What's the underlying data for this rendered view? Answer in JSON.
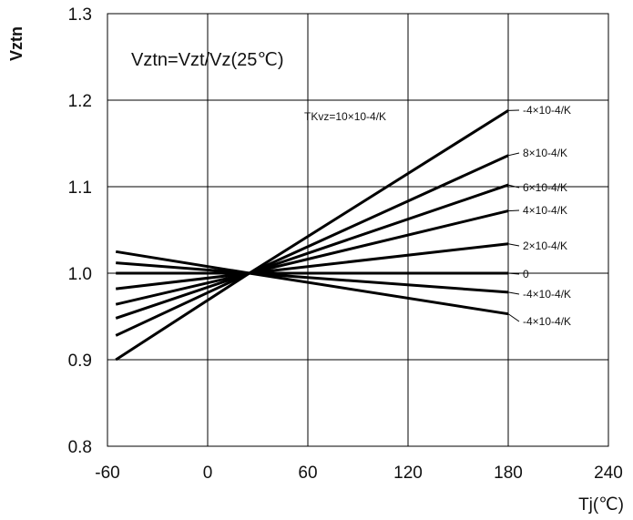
{
  "chart_data": {
    "type": "line",
    "title": "",
    "xlabel": "Tj(℃)",
    "ylabel": "Vztn",
    "xlim": [
      -60,
      240
    ],
    "ylim": [
      0.8,
      1.3
    ],
    "xticks": [
      "-60",
      "0",
      "60",
      "120",
      "180",
      "240"
    ],
    "yticks": [
      "0.8",
      "0.9",
      "1.0",
      "1.1",
      "1.2",
      "1.3"
    ],
    "grid": true,
    "annotations": {
      "formula": "Vztn=Vzt/Vz(25℃)",
      "tk_label": "TKvz=10×10-4/K"
    },
    "series": [
      {
        "name": "-4×10-4/K",
        "x": [
          -55,
          25,
          180
        ],
        "y": [
          0.9,
          1.0,
          1.188
        ]
      },
      {
        "name": "8×10-4/K",
        "x": [
          -55,
          25,
          180
        ],
        "y": [
          0.928,
          1.0,
          1.136
        ]
      },
      {
        "name": "6×10-4/K",
        "x": [
          -55,
          25,
          180
        ],
        "y": [
          0.948,
          1.0,
          1.102
        ]
      },
      {
        "name": "4×10-4/K",
        "x": [
          -55,
          25,
          180
        ],
        "y": [
          0.964,
          1.0,
          1.072
        ]
      },
      {
        "name": "2×10-4/K",
        "x": [
          -55,
          25,
          180
        ],
        "y": [
          0.982,
          1.0,
          1.034
        ]
      },
      {
        "name": "0",
        "x": [
          -55,
          25,
          180
        ],
        "y": [
          1.0,
          1.0,
          1.0
        ]
      },
      {
        "name": "-4×10-4/K",
        "x": [
          -55,
          25,
          180
        ],
        "y": [
          1.012,
          1.0,
          0.978
        ]
      },
      {
        "name": "-4×10-4/K",
        "x": [
          -55,
          25,
          180
        ],
        "y": [
          1.025,
          1.0,
          0.953
        ]
      }
    ]
  }
}
